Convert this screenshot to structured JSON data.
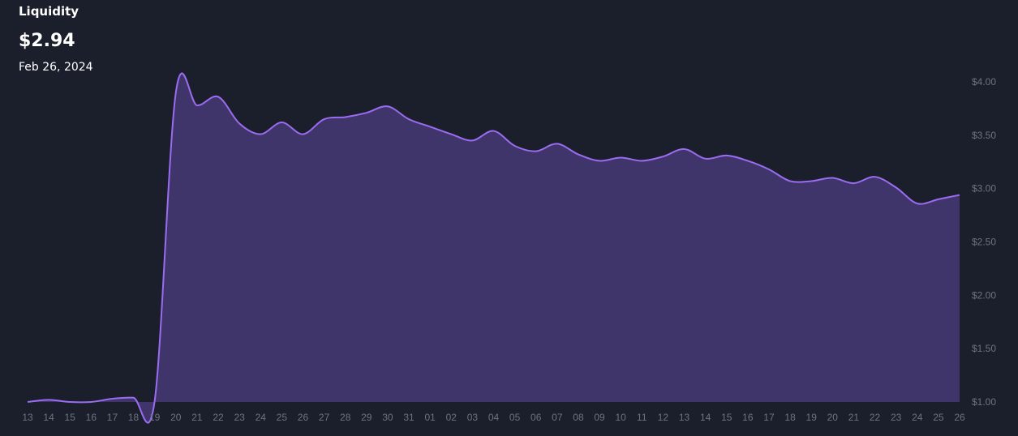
{
  "chart_data": {
    "type": "area",
    "title": "Liquidity",
    "subtitle": "$2.94",
    "date": "Feb 26, 2024",
    "categories": [
      "13",
      "14",
      "15",
      "16",
      "17",
      "18",
      "19",
      "20",
      "21",
      "22",
      "23",
      "24",
      "25",
      "26",
      "27",
      "28",
      "29",
      "30",
      "31",
      "01",
      "02",
      "03",
      "04",
      "05",
      "06",
      "07",
      "08",
      "09",
      "10",
      "11",
      "12",
      "13",
      "14",
      "15",
      "16",
      "17",
      "18",
      "19",
      "20",
      "21",
      "22",
      "23",
      "24",
      "25",
      "26"
    ],
    "values": [
      1.0,
      1.02,
      1.0,
      1.0,
      1.03,
      1.04,
      1.01,
      3.9,
      3.78,
      3.86,
      3.61,
      3.51,
      3.62,
      3.51,
      3.65,
      3.67,
      3.71,
      3.77,
      3.65,
      3.58,
      3.51,
      3.45,
      3.54,
      3.4,
      3.35,
      3.42,
      3.32,
      3.26,
      3.29,
      3.26,
      3.3,
      3.37,
      3.28,
      3.31,
      3.26,
      3.18,
      3.07,
      3.07,
      3.1,
      3.05,
      3.11,
      3.01,
      2.86,
      2.9,
      2.94
    ],
    "color": "#9b6cf2",
    "fill": "#40356b",
    "ylim": [
      1,
      4
    ],
    "yticks": [
      {
        "value": 1,
        "label": "$1.00"
      },
      {
        "value": 1.5,
        "label": "$1.50"
      },
      {
        "value": 2,
        "label": "$2.00"
      },
      {
        "value": 2.5,
        "label": "$2.50"
      },
      {
        "value": 3,
        "label": "$3.00"
      },
      {
        "value": 3.5,
        "label": "$3.50"
      },
      {
        "value": 4,
        "label": "$4.00"
      }
    ]
  }
}
